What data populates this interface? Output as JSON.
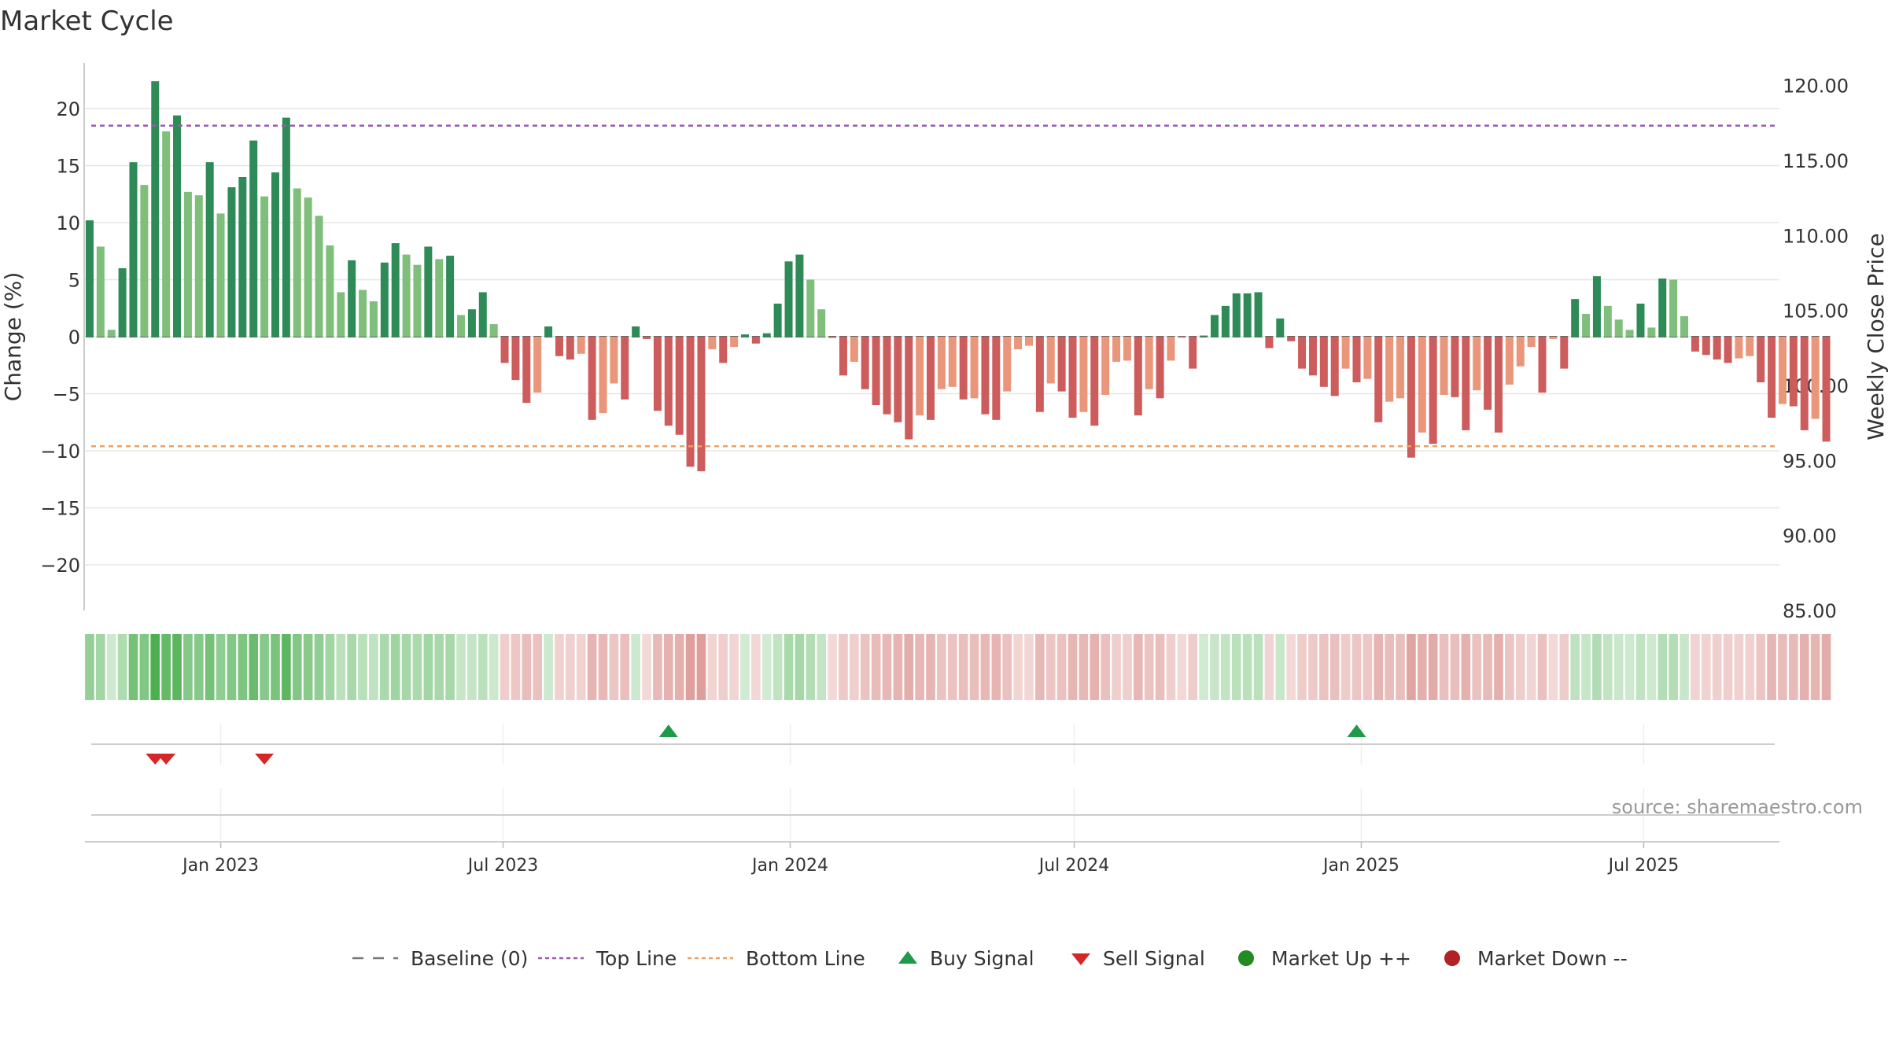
{
  "chart_data": {
    "type": "bar",
    "title": "Market Cycle",
    "ylabel": "Change (%)",
    "y2label": "Weekly Close Price",
    "ylim": [
      -24,
      24
    ],
    "y2lim": [
      85,
      121.5
    ],
    "yticks": [
      20,
      15,
      10,
      5,
      0,
      -5,
      -10,
      -15,
      -20
    ],
    "ytick_labels": [
      "20",
      "15",
      "10",
      "5",
      "0",
      "−5",
      "−10",
      "−15",
      "−20"
    ],
    "y2ticks": [
      120,
      115,
      110,
      105,
      100,
      95,
      90,
      85
    ],
    "y2tick_labels": [
      "120.00",
      "115.00",
      "110.00",
      "105.00",
      "100.00",
      "95.00",
      "90.00",
      "85.00"
    ],
    "x_start": "2022-10-09",
    "x_interval_days": 7,
    "xlim": [
      "2022-10-06",
      "2025-09-26"
    ],
    "xticks": [
      {
        "date": "2023-01-01",
        "label": "Jan 2023"
      },
      {
        "date": "2023-07-01",
        "label": "Jul 2023"
      },
      {
        "date": "2024-01-01",
        "label": "Jan 2024"
      },
      {
        "date": "2024-07-01",
        "label": "Jul 2024"
      },
      {
        "date": "2025-01-01",
        "label": "Jan 2025"
      },
      {
        "date": "2025-07-01",
        "label": "Jul 2025"
      }
    ],
    "top_line": 18.5,
    "bottom_line": -9.6,
    "values": [
      10.2,
      7.9,
      0.6,
      6,
      15.3,
      13.3,
      22.4,
      18,
      19.4,
      12.7,
      12.4,
      15.3,
      10.8,
      13.1,
      14,
      17.2,
      12.3,
      14.4,
      19.2,
      13,
      12.2,
      10.6,
      8,
      3.9,
      6.7,
      4.1,
      3.1,
      6.5,
      8.2,
      7.2,
      6.3,
      7.9,
      6.8,
      7.1,
      1.9,
      2.4,
      3.9,
      1.1,
      -2.3,
      -3.8,
      -5.8,
      -4.9,
      0.9,
      -1.7,
      -2,
      -1.5,
      -7.3,
      -6.7,
      -4.1,
      -5.5,
      0.9,
      -0.2,
      -6.5,
      -7.8,
      -8.6,
      -11.4,
      -11.8,
      -1.1,
      -2.3,
      -0.9,
      0.2,
      -0.6,
      0.3,
      2.9,
      6.6,
      7.2,
      5,
      2.4,
      -0.1,
      -3.4,
      -2.2,
      -4.6,
      -6,
      -6.8,
      -7.5,
      -9,
      -6.9,
      -7.3,
      -4.6,
      -4.4,
      -5.5,
      -5.4,
      -6.8,
      -7.3,
      -4.8,
      -1.1,
      -0.8,
      -6.6,
      -4.1,
      -4.8,
      -7.1,
      -6.6,
      -7.8,
      -5.1,
      -2.2,
      -2.1,
      -6.9,
      -4.6,
      -5.4,
      -2.1,
      -0.1,
      -2.8,
      0.1,
      1.9,
      2.7,
      3.8,
      3.8,
      3.9,
      -1,
      1.6,
      -0.4,
      -2.8,
      -3.4,
      -4.4,
      -5.2,
      -2.8,
      -4,
      -3.7,
      -7.5,
      -5.7,
      -5.4,
      -10.6,
      -8.4,
      -9.4,
      -5.1,
      -5.3,
      -8.2,
      -4.7,
      -6.4,
      -8.4,
      -4.2,
      -2.6,
      -0.9,
      -4.9,
      -0.2,
      -2.8,
      3.3,
      2,
      5.3,
      2.7,
      1.5,
      0.6,
      2.9,
      0.8,
      5.1,
      5,
      1.8,
      -1.3,
      -1.6,
      -2,
      -2.3,
      -1.9,
      -1.7,
      -4,
      -7.1,
      -5.9,
      -6.1,
      -8.2,
      -7.2,
      -9.2
    ],
    "series_colors": {
      "up_strong": "#2e8b57",
      "up_weak": "#7fbf7b",
      "down_strong": "#cd5c5c",
      "down_weak": "#e9967a"
    },
    "heatmap_colors": {
      "positive": "#4caf50",
      "negative": "#cd6b66"
    },
    "buy_signals": [
      "2023-10-15",
      "2024-12-29"
    ],
    "sell_signals": [
      "2022-11-20",
      "2022-11-27",
      "2023-01-29"
    ],
    "legend_position": "bottom-center",
    "legend": [
      {
        "label": "Baseline (0)",
        "symbol": "dashed-line",
        "color": "#777777"
      },
      {
        "label": "Top Line",
        "symbol": "dotted-line",
        "color": "#9b59b6"
      },
      {
        "label": "Bottom Line",
        "symbol": "dotted-line",
        "color": "#f0a060"
      },
      {
        "label": "Buy Signal",
        "symbol": "triangle-up",
        "color": "#1e9a4a"
      },
      {
        "label": "Sell Signal",
        "symbol": "triangle-down",
        "color": "#d62728"
      },
      {
        "label": "Market Up ++",
        "symbol": "circle",
        "color": "#228b22"
      },
      {
        "label": "Market Down --",
        "symbol": "circle",
        "color": "#b22222"
      }
    ],
    "watermark": "source: sharemaestro.com",
    "grid": true
  }
}
